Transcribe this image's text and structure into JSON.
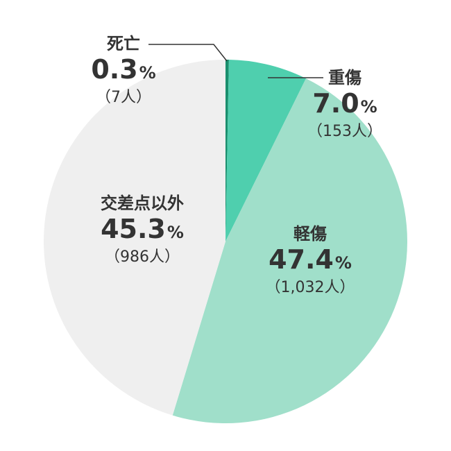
{
  "chart_data": {
    "type": "pie",
    "unit_symbol": "%",
    "count_unit": "人",
    "slices": [
      {
        "label": "死亡",
        "value": 0.3,
        "count": 7,
        "color": "#1a8f6e"
      },
      {
        "label": "重傷",
        "value": 7.0,
        "count": 153,
        "color": "#4fcfae"
      },
      {
        "label": "軽傷",
        "value": 47.4,
        "count": 1032,
        "color": "#a0dfca"
      },
      {
        "label": "交差点以外",
        "value": 45.3,
        "count": 986,
        "color": "#efefef"
      }
    ]
  },
  "labels": [
    {
      "category": "死亡",
      "percent": "0.3",
      "unit": "%",
      "count": "（7人）"
    },
    {
      "category": "重傷",
      "percent": "7.0",
      "unit": "%",
      "count": "（153人）"
    },
    {
      "category": "軽傷",
      "percent": "47.4",
      "unit": "%",
      "count": "（1,032人）"
    },
    {
      "category": "交差点以外",
      "percent": "45.3",
      "unit": "%",
      "count": "（986人）"
    }
  ]
}
